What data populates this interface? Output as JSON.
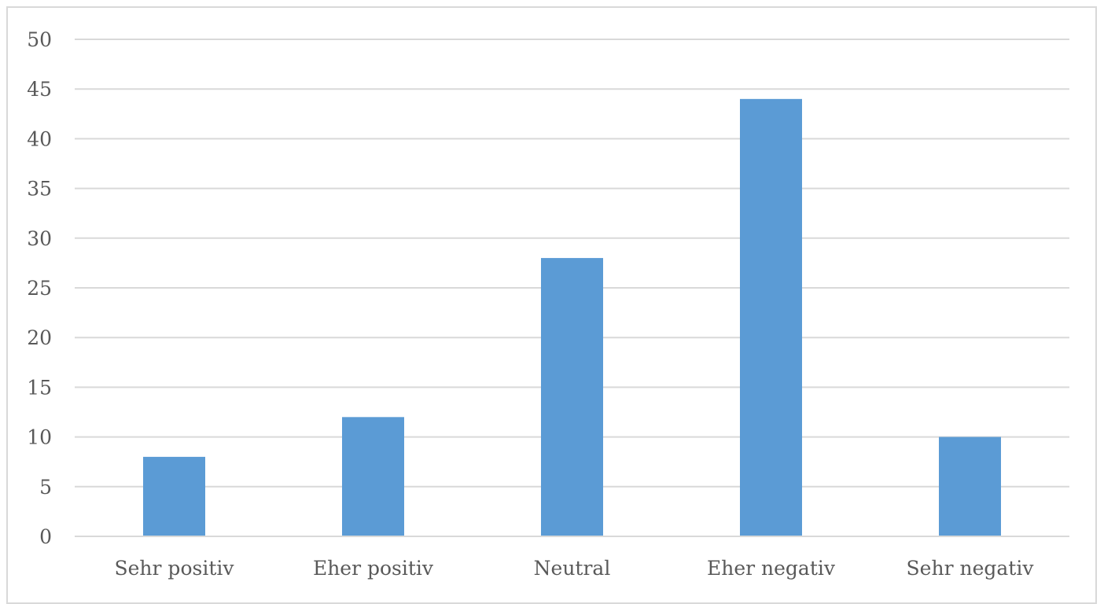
{
  "chart_data": {
    "type": "bar",
    "title": "",
    "xlabel": "",
    "ylabel": "",
    "categories": [
      "Sehr positiv",
      "Eher positiv",
      "Neutral",
      "Eher negativ",
      "Sehr negativ"
    ],
    "values": [
      8,
      12,
      28,
      44,
      10
    ],
    "ylim": [
      0,
      50
    ],
    "yticks": [
      0,
      5,
      10,
      15,
      20,
      25,
      30,
      35,
      40,
      45,
      50
    ],
    "grid": true,
    "legend": "none",
    "colors": {
      "bar": "#5b9bd5",
      "grid": "#d9d9d9",
      "text": "#595959"
    }
  }
}
